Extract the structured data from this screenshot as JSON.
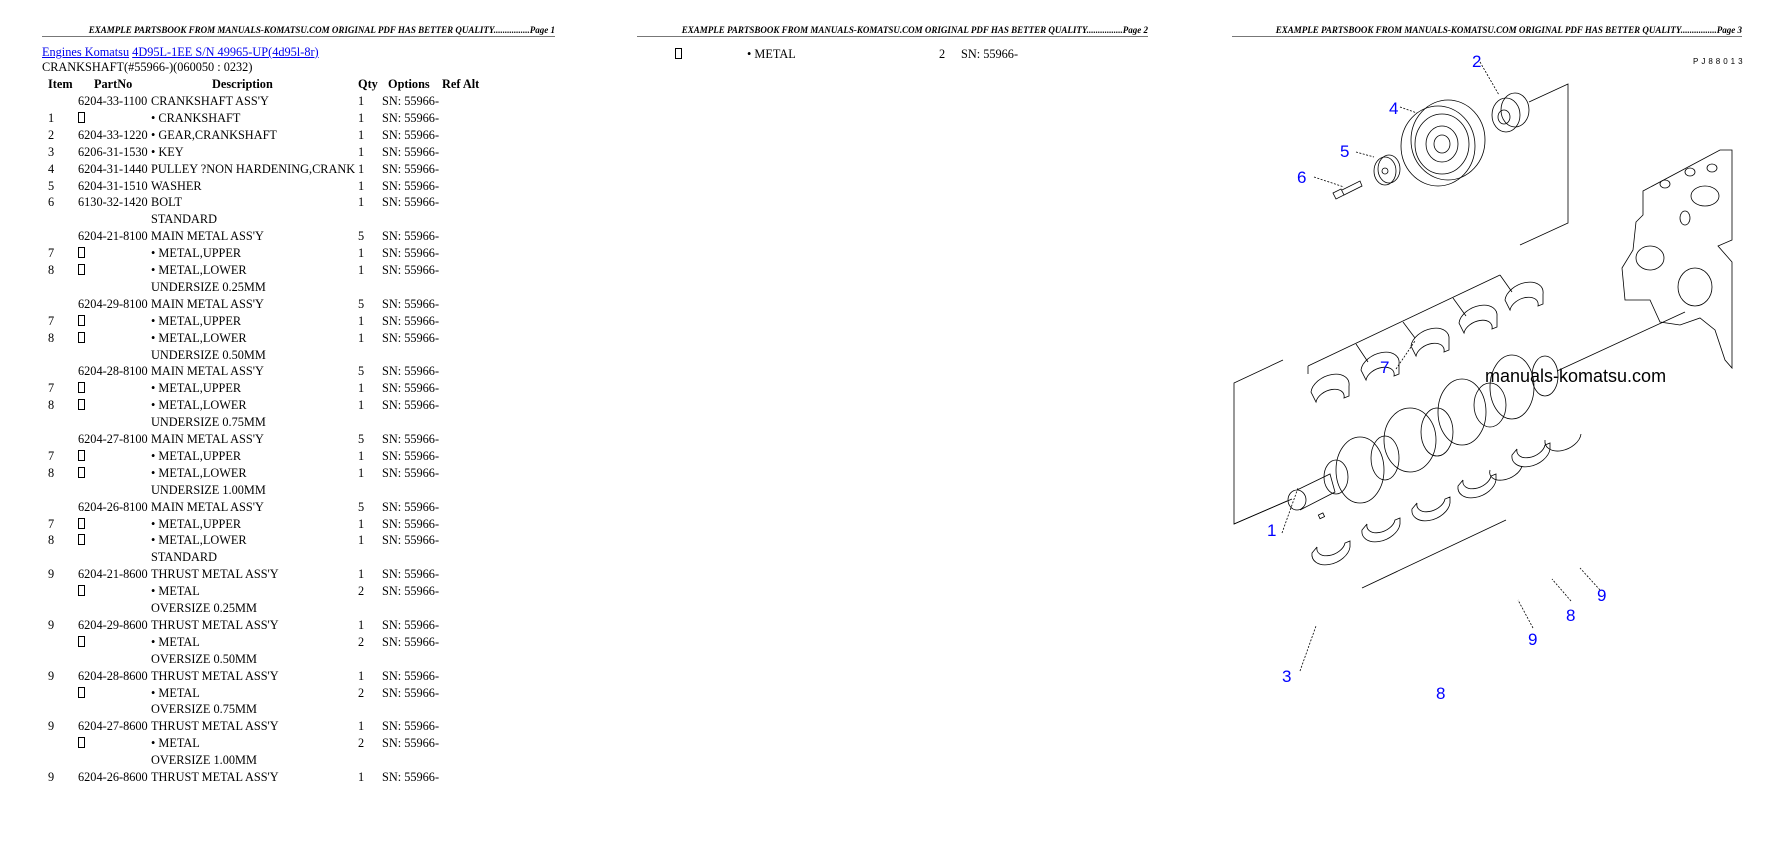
{
  "pages": [
    {
      "header": "EXAMPLE PARTSBOOK FROM MANUALS-KOMATSU.COM ORIGINAL PDF HAS BETTER QUALITY................Page 1"
    },
    {
      "header": "EXAMPLE PARTSBOOK FROM MANUALS-KOMATSU.COM ORIGINAL PDF HAS BETTER QUALITY................Page 2"
    },
    {
      "header": "EXAMPLE PARTSBOOK FROM MANUALS-KOMATSU.COM ORIGINAL PDF HAS BETTER QUALITY................Page 3"
    }
  ],
  "breadcrumb": {
    "link1": "Engines Komatsu",
    "link2": "4D95L-1EE S/N 49965-UP(4d95l-8r)"
  },
  "section_title": "CRANKSHAFT(#55966-)(060050 : 0232)",
  "table": {
    "headers": {
      "item": "Item",
      "partno": "PartNo",
      "description": "Description",
      "qty": "Qty",
      "options": "Options",
      "refalt": "Ref Alt"
    },
    "rows": [
      {
        "item": "",
        "partno": "6204-33-1100",
        "desc": "CRANKSHAFT ASS'Y",
        "qty": "1",
        "options": "SN: 55966-"
      },
      {
        "item": "1",
        "partno": "[missing]",
        "desc": "• CRANKSHAFT",
        "qty": "1",
        "options": "SN: 55966-"
      },
      {
        "item": "2",
        "partno": "6204-33-1220",
        "desc": "• GEAR,CRANKSHAFT",
        "qty": "1",
        "options": "SN: 55966-"
      },
      {
        "item": "3",
        "partno": "6206-31-1530",
        "desc": "• KEY",
        "qty": "1",
        "options": "SN: 55966-"
      },
      {
        "item": "4",
        "partno": "6204-31-1440",
        "desc": "PULLEY ?NON HARDENING,CRANK",
        "qty": "1",
        "options": "SN: 55966-"
      },
      {
        "item": "5",
        "partno": "6204-31-1510",
        "desc": "WASHER",
        "qty": "1",
        "options": "SN: 55966-"
      },
      {
        "item": "6",
        "partno": "6130-32-1420",
        "desc": "BOLT",
        "qty": "1",
        "options": "SN: 55966-"
      },
      {
        "item": "",
        "partno": "",
        "desc": "STANDARD",
        "qty": "",
        "options": ""
      },
      {
        "item": "",
        "partno": "6204-21-8100",
        "desc": "MAIN METAL ASS'Y",
        "qty": "5",
        "options": "SN: 55966-"
      },
      {
        "item": "7",
        "partno": "[missing]",
        "desc": "• METAL,UPPER",
        "qty": "1",
        "options": "SN: 55966-"
      },
      {
        "item": "8",
        "partno": "[missing]",
        "desc": "• METAL,LOWER",
        "qty": "1",
        "options": "SN: 55966-"
      },
      {
        "item": "",
        "partno": "",
        "desc": "UNDERSIZE 0.25MM",
        "qty": "",
        "options": ""
      },
      {
        "item": "",
        "partno": "6204-29-8100",
        "desc": "MAIN METAL ASS'Y",
        "qty": "5",
        "options": "SN: 55966-"
      },
      {
        "item": "7",
        "partno": "[missing]",
        "desc": "• METAL,UPPER",
        "qty": "1",
        "options": "SN: 55966-"
      },
      {
        "item": "8",
        "partno": "[missing]",
        "desc": "• METAL,LOWER",
        "qty": "1",
        "options": "SN: 55966-"
      },
      {
        "item": "",
        "partno": "",
        "desc": "UNDERSIZE 0.50MM",
        "qty": "",
        "options": ""
      },
      {
        "item": "",
        "partno": "6204-28-8100",
        "desc": "MAIN METAL ASS'Y",
        "qty": "5",
        "options": "SN: 55966-"
      },
      {
        "item": "7",
        "partno": "[missing]",
        "desc": "• METAL,UPPER",
        "qty": "1",
        "options": "SN: 55966-"
      },
      {
        "item": "8",
        "partno": "[missing]",
        "desc": "• METAL,LOWER",
        "qty": "1",
        "options": "SN: 55966-"
      },
      {
        "item": "",
        "partno": "",
        "desc": "UNDERSIZE 0.75MM",
        "qty": "",
        "options": ""
      },
      {
        "item": "",
        "partno": "6204-27-8100",
        "desc": "MAIN METAL ASS'Y",
        "qty": "5",
        "options": "SN: 55966-"
      },
      {
        "item": "7",
        "partno": "[missing]",
        "desc": "• METAL,UPPER",
        "qty": "1",
        "options": "SN: 55966-"
      },
      {
        "item": "8",
        "partno": "[missing]",
        "desc": "• METAL,LOWER",
        "qty": "1",
        "options": "SN: 55966-"
      },
      {
        "item": "",
        "partno": "",
        "desc": "UNDERSIZE 1.00MM",
        "qty": "",
        "options": ""
      },
      {
        "item": "",
        "partno": "6204-26-8100",
        "desc": "MAIN METAL ASS'Y",
        "qty": "5",
        "options": "SN: 55966-"
      },
      {
        "item": "7",
        "partno": "[missing]",
        "desc": "• METAL,UPPER",
        "qty": "1",
        "options": "SN: 55966-"
      },
      {
        "item": "8",
        "partno": "[missing]",
        "desc": "• METAL,LOWER",
        "qty": "1",
        "options": "SN: 55966-"
      },
      {
        "item": "",
        "partno": "",
        "desc": "STANDARD",
        "qty": "",
        "options": ""
      },
      {
        "item": "9",
        "partno": "6204-21-8600",
        "desc": "THRUST METAL ASS'Y",
        "qty": "1",
        "options": "SN: 55966-"
      },
      {
        "item": "",
        "partno": "[missing]",
        "desc": "• METAL",
        "qty": "2",
        "options": "SN: 55966-"
      },
      {
        "item": "",
        "partno": "",
        "desc": "OVERSIZE 0.25MM",
        "qty": "",
        "options": ""
      },
      {
        "item": "9",
        "partno": "6204-29-8600",
        "desc": "THRUST METAL ASS'Y",
        "qty": "1",
        "options": "SN: 55966-"
      },
      {
        "item": "",
        "partno": "[missing]",
        "desc": "• METAL",
        "qty": "2",
        "options": "SN: 55966-"
      },
      {
        "item": "",
        "partno": "",
        "desc": "OVERSIZE 0.50MM",
        "qty": "",
        "options": ""
      },
      {
        "item": "9",
        "partno": "6204-28-8600",
        "desc": "THRUST METAL ASS'Y",
        "qty": "1",
        "options": "SN: 55966-"
      },
      {
        "item": "",
        "partno": "[missing]",
        "desc": "• METAL",
        "qty": "2",
        "options": "SN: 55966-"
      },
      {
        "item": "",
        "partno": "",
        "desc": "OVERSIZE 0.75MM",
        "qty": "",
        "options": ""
      },
      {
        "item": "9",
        "partno": "6204-27-8600",
        "desc": "THRUST METAL ASS'Y",
        "qty": "1",
        "options": "SN: 55966-"
      },
      {
        "item": "",
        "partno": "[missing]",
        "desc": "• METAL",
        "qty": "2",
        "options": "SN: 55966-"
      },
      {
        "item": "",
        "partno": "",
        "desc": "OVERSIZE 1.00MM",
        "qty": "",
        "options": ""
      },
      {
        "item": "9",
        "partno": "6204-26-8600",
        "desc": "THRUST METAL ASS'Y",
        "qty": "1",
        "options": "SN: 55966-"
      }
    ]
  },
  "page2_row": {
    "partno": "[missing]",
    "desc": "• METAL",
    "qty": "2",
    "options": "SN: 55966-"
  },
  "diagram": {
    "code": "PJ88013",
    "watermark": "manuals-komatsu.com",
    "label_color": "#0000ff",
    "labels": [
      "2",
      "4",
      "5",
      "6",
      "7",
      "1",
      "3",
      "8",
      "9",
      "8",
      "9"
    ]
  }
}
